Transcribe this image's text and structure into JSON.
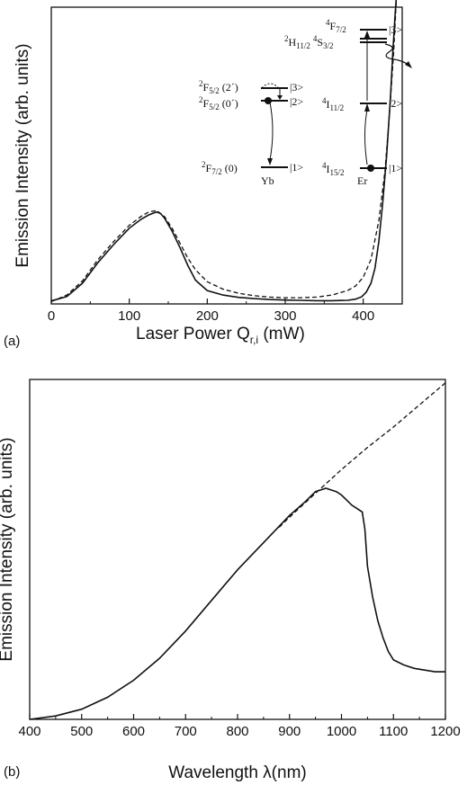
{
  "chart_data": [
    {
      "panel": "(a)",
      "type": "line",
      "xlabel": "Laser Power Q",
      "xlabel_sub": "r,i",
      "xlabel_unit": " (mW)",
      "ylabel": "Emission Intensity (arb. units)",
      "xlim": [
        0,
        450
      ],
      "xticks": [
        "0",
        "100",
        "200",
        "300",
        "400"
      ],
      "series": [
        {
          "style": "solid",
          "x": [
            0,
            20,
            40,
            60,
            80,
            100,
            115,
            125,
            135,
            140,
            145,
            155,
            165,
            175,
            185,
            200,
            220,
            240,
            260,
            280,
            300,
            320,
            340,
            360,
            380,
            390,
            398,
            404,
            410,
            415,
            420,
            425,
            430,
            435,
            438,
            441,
            443
          ],
          "y": [
            0.01,
            0.025,
            0.07,
            0.14,
            0.2,
            0.255,
            0.285,
            0.3,
            0.31,
            0.305,
            0.29,
            0.245,
            0.19,
            0.13,
            0.08,
            0.045,
            0.03,
            0.022,
            0.018,
            0.015,
            0.013,
            0.012,
            0.011,
            0.011,
            0.012,
            0.016,
            0.024,
            0.04,
            0.07,
            0.12,
            0.21,
            0.34,
            0.5,
            0.7,
            0.85,
            0.98,
            1.05
          ]
        },
        {
          "style": "dashed",
          "x": [
            0,
            20,
            40,
            60,
            80,
            100,
            115,
            125,
            135,
            145,
            155,
            165,
            175,
            185,
            200,
            220,
            240,
            260,
            280,
            300,
            320,
            340,
            360,
            380,
            390,
            400,
            410,
            420,
            428,
            434,
            439,
            443
          ],
          "y": [
            0.008,
            0.03,
            0.078,
            0.15,
            0.21,
            0.265,
            0.295,
            0.31,
            0.315,
            0.295,
            0.255,
            0.205,
            0.155,
            0.115,
            0.075,
            0.05,
            0.036,
            0.028,
            0.023,
            0.021,
            0.021,
            0.023,
            0.03,
            0.045,
            0.06,
            0.09,
            0.15,
            0.28,
            0.45,
            0.65,
            0.85,
            1.05
          ]
        }
      ],
      "annotations": {
        "yb_levels": [
          {
            "pre": "2",
            "term": "F",
            "sub": "5/2",
            "post": " (2´)",
            "ket": "|3>"
          },
          {
            "pre": "2",
            "term": "F",
            "sub": "5/2",
            "post": " (0´)",
            "ket": "|2>"
          },
          {
            "pre": "2",
            "term": "F",
            "sub": "7/2",
            "post": " (0)",
            "ket": "|1>"
          }
        ],
        "yb_label": "Yb",
        "er_levels": [
          {
            "pre": "4",
            "term": "F",
            "sub": "7/2",
            "ket": "|3>"
          },
          {
            "pre": "2",
            "term": "H",
            "sub": "11/2",
            "extra_pre": "4",
            "extra_term": "S",
            "extra_sub": "3/2"
          },
          {
            "pre": "4",
            "term": "I",
            "sub": "11/2",
            "ket": "|2>"
          },
          {
            "pre": "4",
            "term": "I",
            "sub": "15/2",
            "ket": "|1>"
          }
        ],
        "er_label": "Er"
      }
    },
    {
      "panel": "(b)",
      "type": "line",
      "xlabel": "Wavelength λ(nm)",
      "ylabel": "Emission Intensity (arb. units)",
      "xlim": [
        400,
        1200
      ],
      "xticks": [
        "400",
        "500",
        "600",
        "700",
        "800",
        "900",
        "1000",
        "1100",
        "1200"
      ],
      "series": [
        {
          "style": "solid",
          "x": [
            400,
            450,
            500,
            550,
            600,
            650,
            700,
            750,
            800,
            850,
            900,
            930,
            950,
            960,
            970,
            980,
            990,
            1000,
            1010,
            1020,
            1030,
            1040,
            1045,
            1050,
            1060,
            1070,
            1080,
            1090,
            1100,
            1120,
            1140,
            1160,
            1180,
            1200
          ],
          "y": [
            0.0,
            0.01,
            0.03,
            0.065,
            0.115,
            0.18,
            0.26,
            0.35,
            0.44,
            0.52,
            0.6,
            0.64,
            0.67,
            0.675,
            0.68,
            0.675,
            0.67,
            0.66,
            0.645,
            0.63,
            0.62,
            0.61,
            0.56,
            0.45,
            0.36,
            0.29,
            0.24,
            0.2,
            0.175,
            0.16,
            0.15,
            0.145,
            0.14,
            0.14
          ]
        },
        {
          "style": "dashed",
          "x": [
            880,
            900,
            950,
            1000,
            1050,
            1100,
            1150,
            1200
          ],
          "y": [
            0.565,
            0.595,
            0.665,
            0.735,
            0.8,
            0.86,
            0.925,
            0.99
          ]
        }
      ]
    }
  ]
}
